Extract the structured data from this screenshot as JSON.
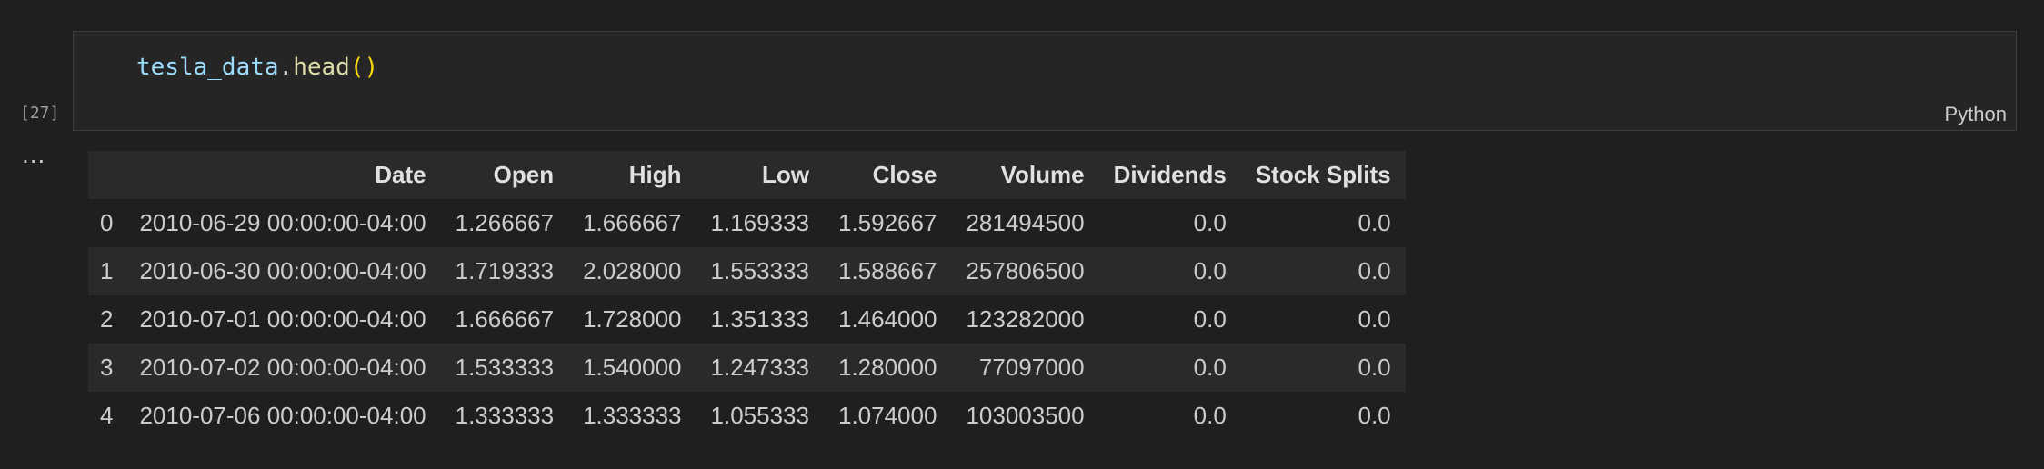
{
  "cell": {
    "execution_count": "[27]",
    "code": {
      "var": "tesla_data",
      "dot": ".",
      "method": "head",
      "parens": "()"
    },
    "language": "Python"
  },
  "output": {
    "ellipsis": "...",
    "columns": [
      "",
      "Date",
      "Open",
      "High",
      "Low",
      "Close",
      "Volume",
      "Dividends",
      "Stock Splits"
    ],
    "rows": [
      [
        "0",
        "2010-06-29 00:00:00-04:00",
        "1.266667",
        "1.666667",
        "1.169333",
        "1.592667",
        "281494500",
        "0.0",
        "0.0"
      ],
      [
        "1",
        "2010-06-30 00:00:00-04:00",
        "1.719333",
        "2.028000",
        "1.553333",
        "1.588667",
        "257806500",
        "0.0",
        "0.0"
      ],
      [
        "2",
        "2010-07-01 00:00:00-04:00",
        "1.666667",
        "1.728000",
        "1.351333",
        "1.464000",
        "123282000",
        "0.0",
        "0.0"
      ],
      [
        "3",
        "2010-07-02 00:00:00-04:00",
        "1.533333",
        "1.540000",
        "1.247333",
        "1.280000",
        "77097000",
        "0.0",
        "0.0"
      ],
      [
        "4",
        "2010-07-06 00:00:00-04:00",
        "1.333333",
        "1.333333",
        "1.055333",
        "1.074000",
        "103003500",
        "0.0",
        "0.0"
      ]
    ]
  }
}
